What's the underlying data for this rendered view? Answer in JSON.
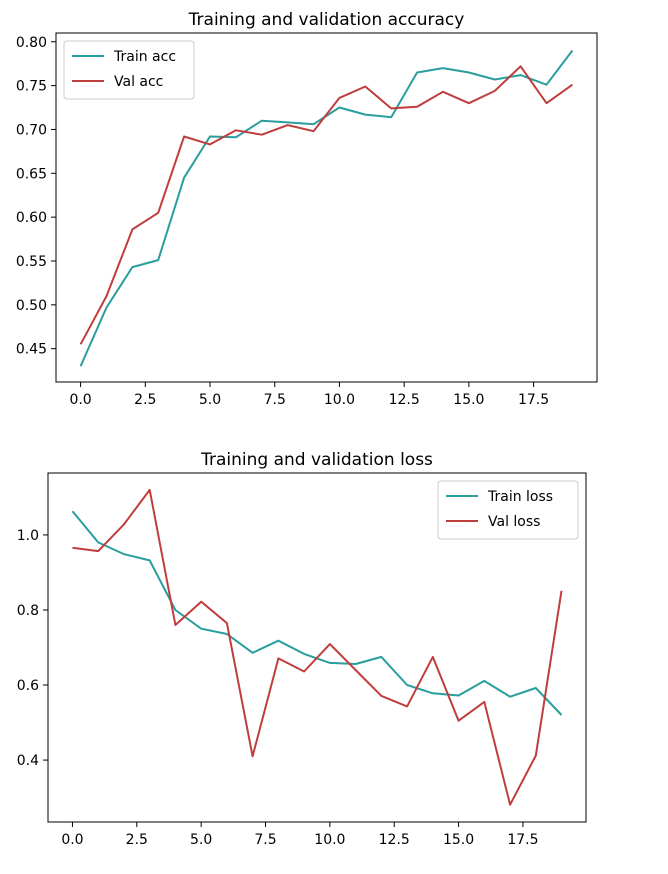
{
  "chart_data": [
    {
      "type": "line",
      "title": "Training and validation accuracy",
      "xlabel": "",
      "ylabel": "",
      "xlim": [
        -0.95,
        19.95
      ],
      "ylim": [
        0.412,
        0.81
      ],
      "xticks": [
        0,
        2.5,
        5,
        7.5,
        10,
        12.5,
        15,
        17.5
      ],
      "xtick_labels": [
        "0.0",
        "2.5",
        "5.0",
        "7.5",
        "10.0",
        "12.5",
        "15.0",
        "17.5"
      ],
      "yticks": [
        0.45,
        0.5,
        0.55,
        0.6,
        0.65,
        0.7,
        0.75,
        0.8
      ],
      "ytick_labels": [
        "0.45",
        "0.50",
        "0.55",
        "0.60",
        "0.65",
        "0.70",
        "0.75",
        "0.80"
      ],
      "grid": false,
      "legend_position": "top-left",
      "x": [
        0,
        1,
        2,
        3,
        4,
        5,
        6,
        7,
        8,
        9,
        10,
        11,
        12,
        13,
        14,
        15,
        16,
        17,
        18,
        19
      ],
      "series": [
        {
          "name": "Train acc",
          "color": "#2a9d9d",
          "values": [
            0.43,
            0.497,
            0.543,
            0.551,
            0.645,
            0.692,
            0.691,
            0.71,
            0.708,
            0.706,
            0.725,
            0.717,
            0.714,
            0.765,
            0.77,
            0.765,
            0.757,
            0.762,
            0.751,
            0.79
          ]
        },
        {
          "name": "Val acc",
          "color": "#c03d3d",
          "values": [
            0.455,
            0.51,
            0.586,
            0.605,
            0.692,
            0.683,
            0.699,
            0.694,
            0.705,
            0.698,
            0.736,
            0.749,
            0.724,
            0.726,
            0.743,
            0.73,
            0.744,
            0.772,
            0.73,
            0.751
          ]
        }
      ]
    },
    {
      "type": "line",
      "title": "Training and validation loss",
      "xlabel": "",
      "ylabel": "",
      "xlim": [
        -0.95,
        19.95
      ],
      "ylim": [
        0.235,
        1.165
      ],
      "xticks": [
        0,
        2.5,
        5,
        7.5,
        10,
        12.5,
        15,
        17.5
      ],
      "xtick_labels": [
        "0.0",
        "2.5",
        "5.0",
        "7.5",
        "10.0",
        "12.5",
        "15.0",
        "17.5"
      ],
      "yticks": [
        0.4,
        0.6,
        0.8,
        1.0
      ],
      "ytick_labels": [
        "0.4",
        "0.6",
        "0.8",
        "1.0"
      ],
      "grid": false,
      "legend_position": "top-right",
      "x": [
        0,
        1,
        2,
        3,
        4,
        5,
        6,
        7,
        8,
        9,
        10,
        11,
        12,
        13,
        14,
        15,
        16,
        17,
        18,
        19
      ],
      "series": [
        {
          "name": "Train loss",
          "color": "#2a9d9d",
          "values": [
            1.063,
            0.98,
            0.949,
            0.932,
            0.8,
            0.75,
            0.736,
            0.686,
            0.718,
            0.683,
            0.659,
            0.656,
            0.675,
            0.6,
            0.578,
            0.572,
            0.611,
            0.569,
            0.592,
            0.52
          ]
        },
        {
          "name": "Val loss",
          "color": "#c03d3d",
          "values": [
            0.966,
            0.957,
            1.028,
            1.12,
            0.76,
            0.822,
            0.765,
            0.41,
            0.671,
            0.636,
            0.709,
            0.64,
            0.571,
            0.543,
            0.675,
            0.505,
            0.555,
            0.281,
            0.412,
            0.851
          ]
        }
      ]
    }
  ]
}
